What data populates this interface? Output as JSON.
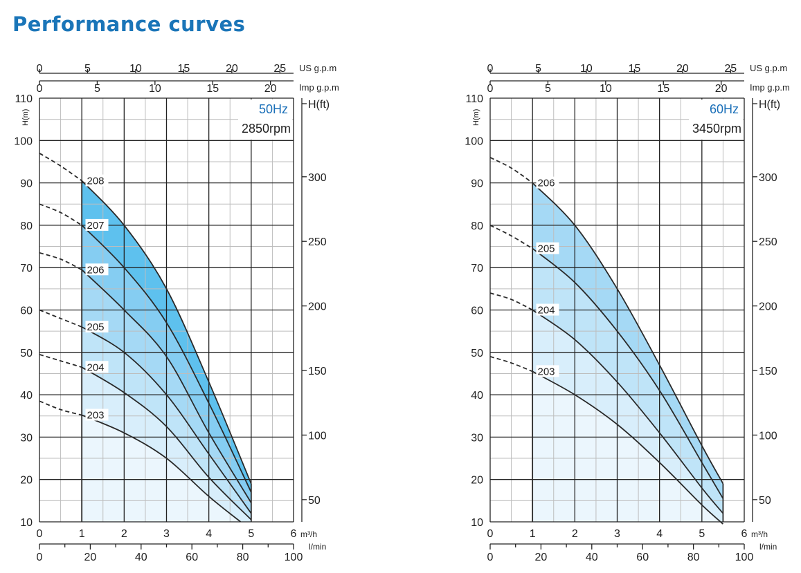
{
  "title": "Performance curves",
  "colors": {
    "title": "#1a75b8",
    "freq": "#1a6fb8",
    "grid": "#222222",
    "minor_grid": "#bdbdbd",
    "fills": [
      "#ebf6fd",
      "#d8eefb",
      "#bfe4f8",
      "#a5d9f5",
      "#85cdf2",
      "#5ec1ee"
    ],
    "curve": "#2a2a2a"
  },
  "chart_data": [
    {
      "type": "line",
      "freq": "50Hz",
      "rpm": "2850rpm",
      "ylabel_left": "H(m)",
      "ylabel_right": "H(ft)",
      "xlabel_m3h": "m³/h",
      "xlabel_lmin": "l/min",
      "label_usgpm": "US g.p.m",
      "label_impgpm": "Imp g.p.m",
      "ylim": [
        10,
        110
      ],
      "xlim": [
        0,
        6
      ],
      "y_ticks": [
        "10",
        "20",
        "30",
        "40",
        "50",
        "60",
        "70",
        "80",
        "90",
        "100",
        "110"
      ],
      "x_ticks_m3h": [
        "0",
        "1",
        "2",
        "3",
        "4",
        "5",
        "6"
      ],
      "x_ticks_lmin": [
        "0",
        "20",
        "40",
        "60",
        "80",
        "100"
      ],
      "x_ticks_usgpm": [
        "0",
        "5",
        "10",
        "15",
        "20",
        "25"
      ],
      "x_ticks_impgpm": [
        "0",
        "5",
        "10",
        "15",
        "20"
      ],
      "ft_ticks": [
        "50",
        "100",
        "150",
        "200",
        "250",
        "300"
      ],
      "operating_range": [
        1,
        5
      ],
      "series": [
        {
          "name": "203",
          "dashed": [
            [
              0,
              38.5
            ],
            [
              0.5,
              36.5
            ],
            [
              1,
              35.2
            ]
          ],
          "solid": [
            [
              1,
              35.2
            ],
            [
              2,
              31
            ],
            [
              3,
              25
            ],
            [
              4,
              16
            ],
            [
              4.75,
              10
            ]
          ]
        },
        {
          "name": "204",
          "dashed": [
            [
              0,
              49.5
            ],
            [
              0.5,
              48
            ],
            [
              1,
              46.5
            ]
          ],
          "solid": [
            [
              1,
              46.5
            ],
            [
              2,
              40.5
            ],
            [
              3,
              32.5
            ],
            [
              4,
              20.5
            ],
            [
              5,
              10.5
            ]
          ]
        },
        {
          "name": "205",
          "dashed": [
            [
              0,
              60
            ],
            [
              0.5,
              58
            ],
            [
              1,
              56
            ]
          ],
          "solid": [
            [
              1,
              56
            ],
            [
              2,
              50
            ],
            [
              3,
              40
            ],
            [
              4,
              26
            ],
            [
              5,
              12
            ]
          ]
        },
        {
          "name": "206",
          "dashed": [
            [
              0,
              73.5
            ],
            [
              0.5,
              72
            ],
            [
              1,
              69.5
            ]
          ],
          "solid": [
            [
              1,
              69.5
            ],
            [
              2,
              60
            ],
            [
              3,
              49
            ],
            [
              4,
              31
            ],
            [
              5,
              14.5
            ]
          ]
        },
        {
          "name": "207",
          "dashed": [
            [
              0,
              85
            ],
            [
              0.5,
              83
            ],
            [
              1,
              80
            ]
          ],
          "solid": [
            [
              1,
              80
            ],
            [
              2,
              70
            ],
            [
              3,
              57
            ],
            [
              4,
              38
            ],
            [
              5,
              17
            ]
          ]
        },
        {
          "name": "208",
          "dashed": [
            [
              0,
              97
            ],
            [
              0.5,
              94
            ],
            [
              1,
              90.5
            ]
          ],
          "solid": [
            [
              1,
              90.5
            ],
            [
              2,
              80
            ],
            [
              3,
              65
            ],
            [
              4,
              43
            ],
            [
              5,
              19
            ]
          ]
        }
      ]
    },
    {
      "type": "line",
      "freq": "60Hz",
      "rpm": "3450rpm",
      "ylabel_left": "H(m)",
      "ylabel_right": "H(ft)",
      "xlabel_m3h": "m³/h",
      "xlabel_lmin": "l/min",
      "label_usgpm": "US g.p.m",
      "label_impgpm": "Imp g.p.m",
      "ylim": [
        10,
        110
      ],
      "xlim": [
        0,
        6
      ],
      "y_ticks": [
        "10",
        "20",
        "30",
        "40",
        "50",
        "60",
        "70",
        "80",
        "90",
        "100",
        "110"
      ],
      "x_ticks_m3h": [
        "0",
        "1",
        "2",
        "3",
        "4",
        "5",
        "6"
      ],
      "x_ticks_lmin": [
        "0",
        "20",
        "40",
        "60",
        "80",
        "100"
      ],
      "x_ticks_usgpm": [
        "0",
        "5",
        "10",
        "15",
        "20",
        "25"
      ],
      "x_ticks_impgpm": [
        "0",
        "5",
        "10",
        "15",
        "20"
      ],
      "ft_ticks": [
        "50",
        "100",
        "150",
        "200",
        "250",
        "300"
      ],
      "operating_range": [
        1,
        5.5
      ],
      "series": [
        {
          "name": "203",
          "dashed": [
            [
              0,
              49
            ],
            [
              0.5,
              47.5
            ],
            [
              1,
              45.5
            ]
          ],
          "solid": [
            [
              1,
              45.5
            ],
            [
              2,
              40
            ],
            [
              3,
              33
            ],
            [
              4,
              24
            ],
            [
              5,
              14
            ],
            [
              5.5,
              9.5
            ]
          ]
        },
        {
          "name": "204",
          "dashed": [
            [
              0,
              64
            ],
            [
              0.5,
              62.5
            ],
            [
              1,
              60
            ]
          ],
          "solid": [
            [
              1,
              60
            ],
            [
              2,
              53
            ],
            [
              3,
              43
            ],
            [
              4,
              31
            ],
            [
              5,
              18
            ],
            [
              5.5,
              12
            ]
          ]
        },
        {
          "name": "205",
          "dashed": [
            [
              0,
              80
            ],
            [
              0.5,
              77.5
            ],
            [
              1,
              74.5
            ]
          ],
          "solid": [
            [
              1,
              74.5
            ],
            [
              2,
              66.5
            ],
            [
              3,
              55
            ],
            [
              4,
              41
            ],
            [
              5,
              24
            ],
            [
              5.5,
              15.5
            ]
          ]
        },
        {
          "name": "206",
          "dashed": [
            [
              0,
              96
            ],
            [
              0.5,
              93.5
            ],
            [
              1,
              90
            ]
          ],
          "solid": [
            [
              1,
              90
            ],
            [
              2,
              80
            ],
            [
              3,
              65
            ],
            [
              4,
              47
            ],
            [
              5,
              28
            ],
            [
              5.5,
              19
            ]
          ]
        }
      ]
    }
  ]
}
